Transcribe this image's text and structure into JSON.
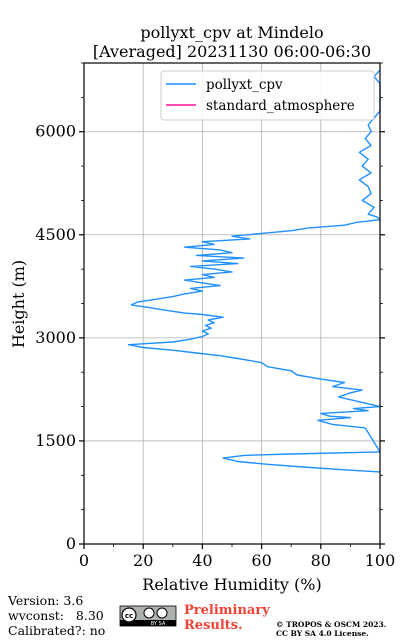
{
  "chart_data": {
    "type": "line",
    "title": "pollyxt_cpv at Mindelo",
    "subtitle": "[Averaged] 20231130 06:00-06:30",
    "xlabel": "Relative Humidity (%)",
    "ylabel": "Height (m)",
    "xlim": [
      0,
      100
    ],
    "ylim": [
      0,
      7000
    ],
    "x_ticks": [
      "0",
      "20",
      "40",
      "60",
      "80",
      "100"
    ],
    "y_ticks": [
      "0",
      "1500",
      "3000",
      "4500",
      "6000"
    ],
    "x_tick_values": [
      0,
      20,
      40,
      60,
      80,
      100
    ],
    "y_tick_values": [
      0,
      1500,
      3000,
      4500,
      6000
    ],
    "grid": true,
    "legend_position": "top-right",
    "series": [
      {
        "name": "pollyxt_cpv",
        "color": "#1f90ff",
        "points": [
          [
            100,
            1050
          ],
          [
            88,
            1080
          ],
          [
            74,
            1120
          ],
          [
            62,
            1160
          ],
          [
            52,
            1200
          ],
          [
            47,
            1250
          ],
          [
            54,
            1290
          ],
          [
            70,
            1310
          ],
          [
            100,
            1340
          ],
          [
            95,
            1690
          ],
          [
            84,
            1740
          ],
          [
            79,
            1800
          ],
          [
            90,
            1840
          ],
          [
            83,
            1860
          ],
          [
            80,
            1900
          ],
          [
            96,
            1940
          ],
          [
            91,
            1970
          ],
          [
            100,
            2000
          ],
          [
            94,
            2060
          ],
          [
            86,
            2140
          ],
          [
            90,
            2200
          ],
          [
            94,
            2240
          ],
          [
            84,
            2290
          ],
          [
            88,
            2350
          ],
          [
            80,
            2400
          ],
          [
            72,
            2460
          ],
          [
            70,
            2520
          ],
          [
            62,
            2580
          ],
          [
            60,
            2640
          ],
          [
            52,
            2700
          ],
          [
            46,
            2740
          ],
          [
            38,
            2780
          ],
          [
            30,
            2820
          ],
          [
            20,
            2860
          ],
          [
            15,
            2900
          ],
          [
            22,
            2920
          ],
          [
            30,
            2940
          ],
          [
            36,
            2980
          ],
          [
            40,
            3020
          ],
          [
            42,
            3060
          ],
          [
            40,
            3100
          ],
          [
            43,
            3140
          ],
          [
            41,
            3180
          ],
          [
            44,
            3220
          ],
          [
            42,
            3260
          ],
          [
            47,
            3300
          ],
          [
            40,
            3340
          ],
          [
            34,
            3360
          ],
          [
            28,
            3400
          ],
          [
            22,
            3440
          ],
          [
            16,
            3480
          ],
          [
            18,
            3520
          ],
          [
            24,
            3560
          ],
          [
            30,
            3600
          ],
          [
            34,
            3640
          ],
          [
            40,
            3680
          ],
          [
            36,
            3720
          ],
          [
            46,
            3760
          ],
          [
            40,
            3800
          ],
          [
            34,
            3840
          ],
          [
            44,
            3880
          ],
          [
            40,
            3920
          ],
          [
            50,
            3960
          ],
          [
            44,
            4000
          ],
          [
            36,
            4040
          ],
          [
            52,
            4080
          ],
          [
            40,
            4120
          ],
          [
            54,
            4160
          ],
          [
            38,
            4200
          ],
          [
            50,
            4240
          ],
          [
            46,
            4280
          ],
          [
            34,
            4320
          ],
          [
            44,
            4360
          ],
          [
            40,
            4400
          ],
          [
            56,
            4440
          ],
          [
            50,
            4480
          ],
          [
            60,
            4520
          ],
          [
            70,
            4560
          ],
          [
            76,
            4600
          ],
          [
            88,
            4640
          ],
          [
            92,
            4680
          ],
          [
            100,
            4720
          ],
          [
            99,
            4760
          ],
          [
            96,
            4800
          ],
          [
            98,
            4900
          ],
          [
            94,
            5000
          ],
          [
            97,
            5100
          ],
          [
            96,
            5200
          ],
          [
            93,
            5300
          ],
          [
            97,
            5400
          ],
          [
            94,
            5500
          ],
          [
            96,
            5600
          ],
          [
            93,
            5700
          ],
          [
            97,
            5800
          ],
          [
            95,
            5900
          ],
          [
            97,
            6000
          ],
          [
            96,
            6100
          ],
          [
            98,
            6200
          ],
          [
            100,
            6300
          ],
          [
            100,
            6700
          ],
          [
            98,
            6800
          ],
          [
            100,
            6900
          ]
        ]
      },
      {
        "name": "standard_atmosphere",
        "color": "#ff1493",
        "points": []
      }
    ]
  },
  "footer": {
    "version": "Version: 3.6",
    "wvconst": "wvconst:   8.30",
    "calibrated": "Calibrated?: no",
    "preliminary_line1": "Preliminary",
    "preliminary_line2": "Results.",
    "copyright_line1": "© TROPOS & OSCM 2023.",
    "copyright_line2": "CC BY SA 4.0 License.",
    "license_badge_text": "BY SA"
  }
}
